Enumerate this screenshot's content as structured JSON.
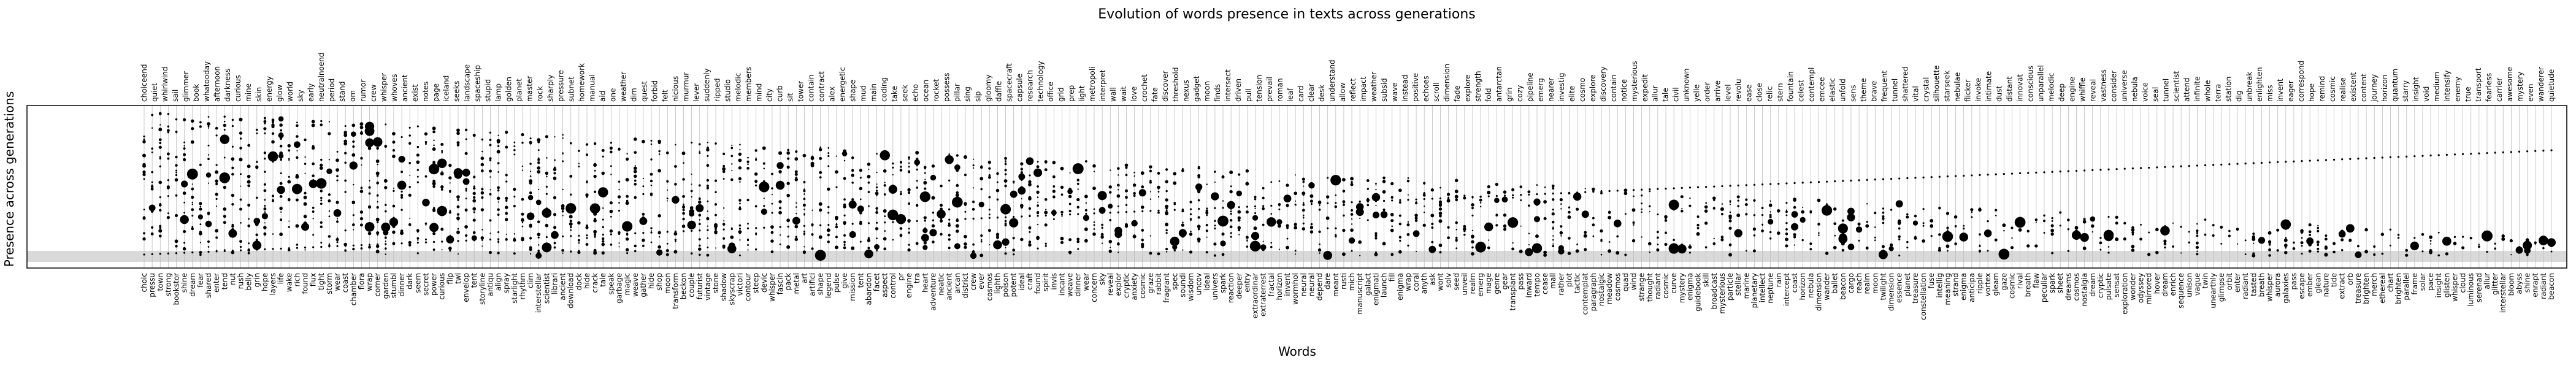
{
  "chart_data": {
    "type": "scatter",
    "title": "Evolution of words presence in texts across generations",
    "xlabel": "Words",
    "ylabel": "Presence across generations",
    "grid": true,
    "legend": "none",
    "top_words": [
      "choiceend",
      "quiet",
      "whirlwind",
      "sail",
      "glimmer",
      "book",
      "whatooday",
      "afternoon",
      "darkness",
      "curious",
      "mine",
      "skin",
      "energy",
      "glow",
      "world",
      "sky",
      "early",
      "neutralnoend",
      "period",
      "stand",
      "om",
      "rumor",
      "crew",
      "whisper",
      "whoves",
      "ancient",
      "exist",
      "notes",
      "page",
      "iceland",
      "seeks",
      "landscape",
      "spaceship",
      "stupid",
      "lamp",
      "golden",
      "planet",
      "master",
      "rock",
      "sharply",
      "pressure",
      "subnet",
      "homework",
      "manual",
      "aid",
      "one",
      "weather",
      "dim",
      "quest",
      "forbid",
      "felt",
      "nicious",
      "murmur",
      "lever",
      "suddenly",
      "ripped",
      "studio",
      "melodic",
      "members",
      "mind",
      "city",
      "curb",
      "sit",
      "tower",
      "contain",
      "contract",
      "alex",
      "energetic",
      "shape",
      "mud",
      "main",
      "coding",
      "take",
      "seek",
      "echo",
      "ocean",
      "rocket",
      "possess",
      "pillar",
      "sing",
      "sip",
      "gloomy",
      "daffle",
      "spacecraft",
      "capsule",
      "research",
      "technology",
      "office",
      "grid",
      "prep",
      "light",
      "metropoli",
      "interpret",
      "wall",
      "wait",
      "love",
      "crochet",
      "fate",
      "discover",
      "threshold",
      "nexus",
      "gadget",
      "moon",
      "finds",
      "intersect",
      "driven",
      "pull",
      "tension",
      "prevail",
      "roman",
      "leaf",
      "card",
      "clear",
      "desk",
      "understand",
      "allow",
      "reflect",
      "impact",
      "weather",
      "subsid",
      "wave",
      "instead",
      "positive",
      "echoes",
      "scroll",
      "dimension",
      "fade",
      "explore",
      "strength",
      "fold",
      "antarctan",
      "grin",
      "cozy",
      "pipeline",
      "emerg",
      "nearer",
      "investig",
      "elite",
      "cosmo",
      "explore",
      "discovery",
      "contain",
      "notice",
      "mysterious",
      "expedit",
      "allur",
      "tale",
      "civil",
      "unknown",
      "yelle",
      "order",
      "arrive",
      "level",
      "revolu",
      "ease",
      "close",
      "relic",
      "stern",
      "fountain",
      "celest",
      "contempl",
      "emcee",
      "elastic",
      "unfold",
      "sens",
      "theme",
      "brave",
      "frequent",
      "tunnel",
      "shattered",
      "vital",
      "crystal",
      "silhouette",
      "starseek",
      "nebulae",
      "flicker",
      "invoke",
      "intimate",
      "dust",
      "distant",
      "innovat",
      "conscious",
      "unparallel",
      "melodic",
      "deep",
      "engine",
      "whiffle",
      "reveal",
      "vastness",
      "consider",
      "universe",
      "nebula",
      "voice",
      "seal",
      "tunnel",
      "scientist",
      "attend",
      "infinite",
      "whole",
      "terra",
      "station",
      "dig",
      "unbreak",
      "enlighten",
      "miss",
      "invent",
      "eager",
      "correspond",
      "hope",
      "remind",
      "cosmic",
      "realise",
      "existent",
      "content",
      "journey",
      "horizon",
      "quantum",
      "starry",
      "insight",
      "void",
      "medium",
      "intensify",
      "enemy",
      "true",
      "transport",
      "fearless",
      "carrier",
      "awesome",
      "mystery",
      "even",
      "wanderer",
      "quietude"
    ],
    "bottom_words": [
      "choic",
      "pressu",
      "town",
      "strong",
      "bookstor",
      "shine",
      "dream",
      "fear",
      "shared",
      "enter",
      "tend",
      "nut",
      "rush",
      "belly",
      "grin",
      "hope",
      "layers",
      "life",
      "wake",
      "rich",
      "found",
      "flux",
      "tight",
      "storm",
      "wear",
      "coast",
      "chamber",
      "flora",
      "wrap",
      "corner",
      "garden",
      "stumbl",
      "dinner",
      "dark",
      "seem",
      "secret",
      "power",
      "curious",
      "flip",
      "twi",
      "envelop",
      "tent",
      "storyline",
      "antiqu",
      "align",
      "spray",
      "starlight",
      "rhythm",
      "clim",
      "interstellar",
      "scientist",
      "librari",
      "ancient",
      "download",
      "dock",
      "hide",
      "crack",
      "tale",
      "speak",
      "garbage",
      "magic",
      "weave",
      "gather",
      "hide",
      "shop",
      "moon",
      "transform",
      "beckon",
      "couple",
      "futurist",
      "vintage",
      "stone",
      "shadow",
      "skyscrap",
      "victori",
      "contour",
      "steep",
      "devic",
      "whisper",
      "fascin",
      "pack",
      "metal",
      "art",
      "artifici",
      "shape",
      "legend",
      "pulse",
      "give",
      "mission",
      "tent",
      "abandon",
      "facet",
      "aspect",
      "control",
      "pr",
      "engine",
      "tra",
      "heart",
      "adventure",
      "neatic",
      "ancient",
      "arcan",
      "district",
      "crew",
      "ever",
      "cosmos",
      "lighth",
      "poison",
      "potent",
      "ideal",
      "craft",
      "found",
      "spirit",
      "invis",
      "incant",
      "weave",
      "dinner",
      "wear",
      "concern",
      "sky",
      "reveal",
      "explor",
      "cryptic",
      "anxiety",
      "cosmic",
      "graze",
      "rabbit",
      "fragrant",
      "spec",
      "soundi",
      "wisdom",
      "uncov",
      "ideal",
      "univers",
      "spark",
      "reaction",
      "deeper",
      "entry",
      "extraordinar",
      "extraterrest",
      "fractal",
      "horizon",
      "invent",
      "wormhol",
      "neural",
      "neural",
      "depend",
      "dare",
      "meant",
      "rusti",
      "mich",
      "manuscript",
      "galact",
      "enigmati",
      "launch",
      "fill",
      "enigma",
      "wrap",
      "coral",
      "anyth",
      "ask",
      "wont",
      "solv",
      "seed",
      "unveil",
      "realm",
      "emerg",
      "mage",
      "genre",
      "gear",
      "transplant",
      "pass",
      "inward",
      "tempo",
      "cease",
      "mall",
      "rather",
      "plot",
      "tactic",
      "contemplat",
      "paragraph",
      "nostalgic",
      "meadow",
      "cosmos",
      "quad",
      "wind",
      "strange",
      "thought",
      "radiant",
      "cosmic",
      "curve",
      "mystery",
      "enigma",
      "guidebook",
      "skill",
      "broadcast",
      "mysterious",
      "particle",
      "stellar",
      "marine",
      "planetary",
      "intellect",
      "neptune",
      "rain",
      "intercept",
      "coast",
      "horizon",
      "nebula",
      "dimension",
      "wander",
      "ballet",
      "beacon",
      "cargo",
      "reach",
      "realm",
      "moon",
      "twilight",
      "dimension",
      "essence",
      "planet",
      "treasure",
      "constellation",
      "fuse",
      "intellig",
      "meaning",
      "strand",
      "enigma",
      "anticipa",
      "ripple",
      "vortex",
      "gleam",
      "gaze",
      "cosmic",
      "rival",
      "breath",
      "flaw",
      "peculiar",
      "spark",
      "sheet",
      "dreams",
      "cosmos",
      "nostalgia",
      "dream",
      "cryptic",
      "pulsate",
      "sensat",
      "exploration",
      "wonder",
      "odyssey",
      "mirrored",
      "hover",
      "dream",
      "enrich",
      "sequence",
      "unison",
      "vague",
      "twin",
      "unearthly",
      "glimpse",
      "orbit",
      "enter",
      "radiant",
      "tasted",
      "breath",
      "whisper",
      "aurora",
      "galaxies",
      "pass",
      "escape",
      "ember",
      "glean",
      "nature",
      "tide",
      "extract",
      "orb",
      "treasure",
      "brighten",
      "merch",
      "ethereal",
      "chart",
      "brighten",
      "parallel",
      "frame",
      "solar",
      "pace",
      "insight",
      "glisten",
      "whisper",
      "cloud",
      "luminous",
      "serenad",
      "allur",
      "glitter",
      "interstellar",
      "bloom",
      "abyss",
      "shine",
      "enrapt",
      "radiant",
      "beacon"
    ],
    "ylim": [
      0,
      20
    ],
    "xlim": [
      0,
      1
    ]
  }
}
